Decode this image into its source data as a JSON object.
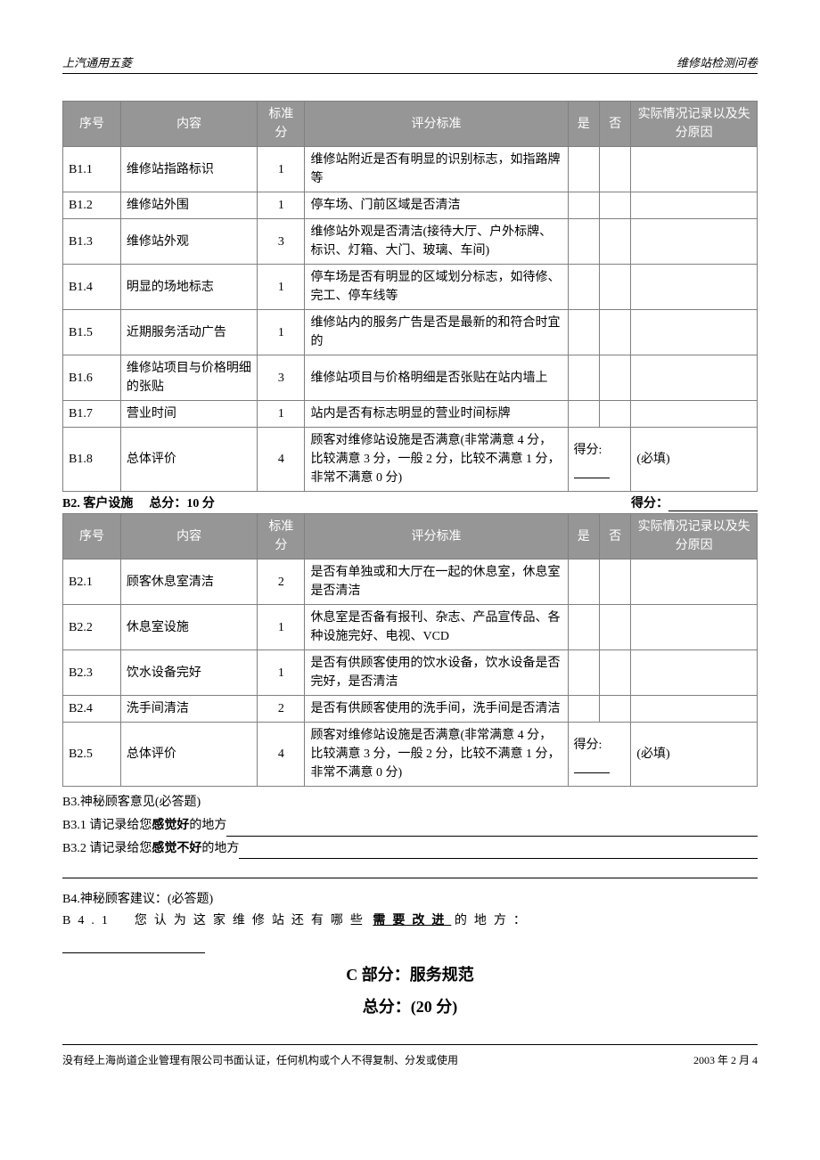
{
  "header": {
    "left": "上汽通用五菱",
    "right": "维修站检测问卷"
  },
  "table_headers": {
    "id": "序号",
    "content": "内容",
    "std": "标准分",
    "criteria": "评分标准",
    "yes": "是",
    "no": "否",
    "note": "实际情况记录以及失分原因"
  },
  "b1_rows": [
    {
      "id": "B1.1",
      "name": "维修站指路标识",
      "std": "1",
      "crit": "维修站附近是否有明显的识别标志，如指路牌等",
      "yes": "",
      "no": "",
      "note": ""
    },
    {
      "id": "B1.2",
      "name": "维修站外围",
      "std": "1",
      "crit": "停车场、门前区域是否清洁",
      "yes": "",
      "no": "",
      "note": ""
    },
    {
      "id": "B1.3",
      "name": "维修站外观",
      "std": "3",
      "crit": "维修站外观是否清洁(接待大厅、户外标牌、标识、灯箱、大门、玻璃、车间)",
      "yes": "",
      "no": "",
      "note": ""
    },
    {
      "id": "B1.4",
      "name": "明显的场地标志",
      "std": "1",
      "crit": "停车场是否有明显的区域划分标志，如待修、完工、停车线等",
      "yes": "",
      "no": "",
      "note": ""
    },
    {
      "id": "B1.5",
      "name": "近期服务活动广告",
      "std": "1",
      "crit": "维修站内的服务广告是否是最新的和符合时宜的",
      "yes": "",
      "no": "",
      "note": ""
    },
    {
      "id": "B1.6",
      "name": "维修站项目与价格明细的张贴",
      "std": "3",
      "crit": "维修站项目与价格明细是否张贴在站内墙上",
      "yes": "",
      "no": "",
      "note": ""
    },
    {
      "id": "B1.7",
      "name": "营业时间",
      "std": "1",
      "crit": "站内是否有标志明显的营业时间标牌",
      "yes": "",
      "no": "",
      "note": ""
    },
    {
      "id": "B1.8",
      "name": "总体评价",
      "std": "4",
      "crit": "顾客对维修站设施是否满意(非常满意 4 分，比较满意 3 分，一般 2 分，比较不满意 1 分，非常不满意 0 分)",
      "yes_special": "得分:",
      "no_special": "____",
      "note": "(必填)"
    }
  ],
  "b2_section": {
    "title": "B2. 客户设施",
    "total": "总分：10 分",
    "score_label": "得分："
  },
  "b2_rows": [
    {
      "id": "B2.1",
      "name": "顾客休息室清洁",
      "std": "2",
      "crit": "是否有单独或和大厅在一起的休息室，休息室是否清洁",
      "yes": "",
      "no": "",
      "note": ""
    },
    {
      "id": "B2.2",
      "name": "休息室设施",
      "std": "1",
      "crit": "休息室是否备有报刊、杂志、产品宣传品、各种设施完好、电视、VCD",
      "yes": "",
      "no": "",
      "note": ""
    },
    {
      "id": "B2.3",
      "name": "饮水设备完好",
      "std": "1",
      "crit": "是否有供顾客使用的饮水设备，饮水设备是否完好，是否清洁",
      "yes": "",
      "no": "",
      "note": ""
    },
    {
      "id": "B2.4",
      "name": "洗手间清洁",
      "std": "2",
      "crit": "是否有供顾客使用的洗手间，洗手间是否清洁",
      "yes": "",
      "no": "",
      "note": ""
    },
    {
      "id": "B2.5",
      "name": "总体评价",
      "std": "4",
      "crit": "顾客对维修站设施是否满意(非常满意 4 分，比较满意 3 分，一般 2 分，比较不满意 1 分，非常不满意 0 分)",
      "yes_special": "得分:",
      "no_special": "____",
      "note": "(必填)"
    }
  ],
  "b3": {
    "title": "B3.神秘顾客意见(必答题)",
    "q1_prefix": "B3.1 请记录给您",
    "q1_bold": "感觉好",
    "q1_suffix": "的地方",
    "q2_prefix": "B3.2 请记录给您",
    "q2_bold": "感觉不好",
    "q2_suffix": "的地方"
  },
  "b4": {
    "title": "B4.神秘顾客建议：(必答题)",
    "q_prefix_spaced": "B4.1　您认为这家维修站还有哪些",
    "q_bold": "需要改进",
    "q_suffix_spaced": "的地方："
  },
  "partC": {
    "line1": "C 部分：服务规范",
    "line2": "总分：(20 分)"
  },
  "footer": {
    "left": "没有经上海尚道企业管理有限公司书面认证，任何机构或个人不得复制、分发或使用",
    "right": "2003 年 2 月    4"
  },
  "colors": {
    "header_bg": "#969696",
    "header_fg": "#ffffff",
    "border": "#808080",
    "text": "#000000",
    "bg": "#ffffff"
  }
}
